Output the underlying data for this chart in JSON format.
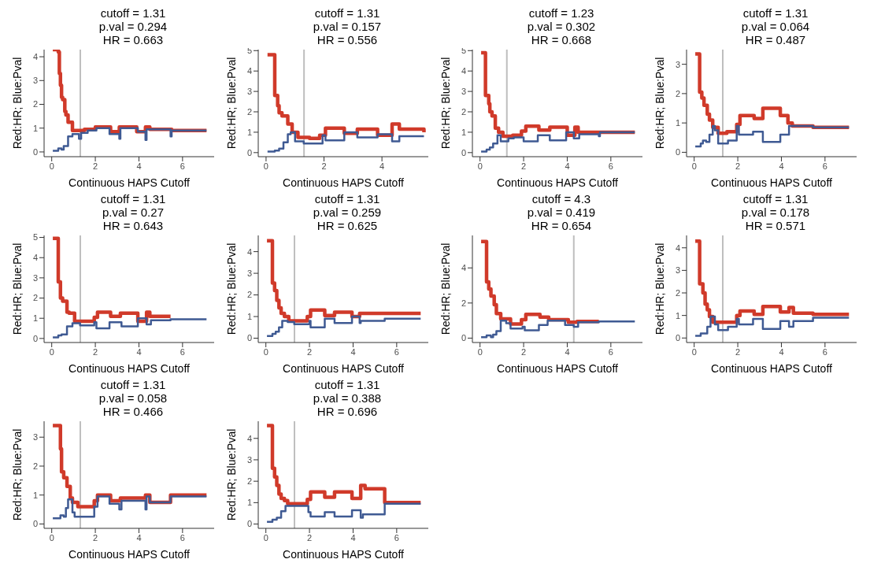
{
  "chart_data": [
    {
      "type": "step",
      "title": "cutoff = 1.31\np.val = 0.294\nHR = 0.663",
      "xlabel": "Continuous HAPS Cutoff",
      "ylabel": "Red:HR; Blue:Pval",
      "xlim": [
        -0.35,
        7.45
      ],
      "xticks": [
        0,
        2,
        4,
        6
      ],
      "ylim": [
        -0.2,
        4.3
      ],
      "yticks": [
        0,
        1,
        2,
        3,
        4
      ],
      "ref_lines": [
        {
          "axis": "x",
          "value": 1.31,
          "color": "#bebebe"
        }
      ],
      "series": [
        {
          "color": "#d03a2a",
          "x": [
            0.05,
            0.3,
            0.35,
            0.4,
            0.45,
            0.5,
            0.6,
            0.65,
            0.75,
            0.95,
            1.2,
            1.5,
            2.0,
            2.7,
            3.1,
            3.9,
            4.3,
            4.5,
            5.5,
            7.1
          ],
          "values": [
            4.3,
            4.2,
            3.3,
            2.8,
            2.3,
            2.2,
            1.7,
            1.55,
            1.25,
            0.9,
            0.9,
            0.95,
            1.05,
            0.85,
            1.05,
            0.85,
            1.05,
            0.95,
            0.9,
            0.9
          ]
        },
        {
          "color": "#3f5a93",
          "x": [
            0.05,
            0.3,
            0.45,
            0.55,
            0.75,
            0.95,
            1.25,
            1.35,
            1.65,
            2.05,
            2.65,
            3.1,
            3.15,
            3.95,
            4.3,
            4.35,
            5.45,
            5.5,
            7.1
          ],
          "values": [
            0.05,
            0.15,
            0.1,
            0.25,
            0.65,
            0.75,
            0.55,
            0.8,
            0.9,
            1.0,
            0.75,
            0.55,
            1.0,
            0.85,
            0.5,
            0.95,
            0.65,
            0.9,
            0.9
          ]
        }
      ]
    },
    {
      "type": "step",
      "title": "cutoff = 1.31\np.val = 0.157\nHR = 0.556",
      "xlabel": "Continuous HAPS Cutoff",
      "ylabel": "Red:HR; Blue:Pval",
      "xlim": [
        -0.27,
        5.6
      ],
      "xticks": [
        0,
        2,
        4
      ],
      "ylim": [
        -0.2,
        5.05
      ],
      "yticks": [
        0,
        1,
        2,
        3,
        4,
        5
      ],
      "ref_lines": [
        {
          "axis": "x",
          "value": 1.31,
          "color": "#bebebe"
        }
      ],
      "series": [
        {
          "color": "#d03a2a",
          "x": [
            0.05,
            0.3,
            0.4,
            0.45,
            0.55,
            0.75,
            0.9,
            1.1,
            1.5,
            1.85,
            2.05,
            2.7,
            3.15,
            3.85,
            4.35,
            4.6,
            5.45
          ],
          "values": [
            4.8,
            2.8,
            2.3,
            1.95,
            1.8,
            1.4,
            1.0,
            0.75,
            0.7,
            0.85,
            1.2,
            0.95,
            1.15,
            0.85,
            1.4,
            1.15,
            1.0
          ]
        },
        {
          "color": "#3f5a93",
          "x": [
            0.05,
            0.3,
            0.45,
            0.6,
            0.75,
            0.85,
            1.0,
            1.3,
            1.95,
            2.05,
            2.7,
            3.15,
            3.85,
            4.35,
            4.6,
            5.45
          ],
          "values": [
            0.05,
            0.1,
            0.2,
            0.5,
            0.9,
            1.0,
            0.55,
            0.45,
            0.85,
            0.6,
            1.0,
            0.75,
            0.9,
            0.55,
            0.8,
            0.8
          ]
        }
      ]
    },
    {
      "type": "step",
      "title": "cutoff = 1.23\np.val = 0.302\nHR = 0.668",
      "xlabel": "Continuous HAPS Cutoff",
      "ylabel": "Red:HR; Blue:Pval",
      "xlim": [
        -0.35,
        7.45
      ],
      "xticks": [
        0,
        2,
        4,
        6
      ],
      "ylim": [
        -0.2,
        5.05
      ],
      "yticks": [
        0,
        1,
        2,
        3,
        4,
        5
      ],
      "ref_lines": [
        {
          "axis": "x",
          "value": 1.23,
          "color": "#bebebe"
        }
      ],
      "series": [
        {
          "color": "#d03a2a",
          "x": [
            0.05,
            0.25,
            0.4,
            0.45,
            0.55,
            0.7,
            0.85,
            1.05,
            1.5,
            1.9,
            2.1,
            2.7,
            3.2,
            4.0,
            4.35,
            4.5,
            5.45,
            7.1
          ],
          "values": [
            4.9,
            2.8,
            2.4,
            2.0,
            1.8,
            1.2,
            1.0,
            0.8,
            0.85,
            1.05,
            1.3,
            1.1,
            1.25,
            0.85,
            1.25,
            1.0,
            1.0,
            1.0
          ]
        },
        {
          "color": "#3f5a93",
          "x": [
            0.05,
            0.3,
            0.45,
            0.6,
            0.8,
            0.95,
            1.3,
            1.55,
            2.0,
            2.65,
            3.2,
            3.95,
            4.3,
            4.55,
            5.45,
            5.5,
            7.1
          ],
          "values": [
            0.05,
            0.15,
            0.25,
            0.45,
            0.85,
            0.55,
            0.7,
            0.75,
            0.55,
            0.85,
            0.6,
            1.0,
            0.7,
            0.9,
            0.8,
            1.0,
            1.0
          ]
        }
      ]
    },
    {
      "type": "step",
      "title": "cutoff = 1.31\np.val = 0.064\nHR = 0.487",
      "xlabel": "Continuous HAPS Cutoff",
      "ylabel": "Red:HR; Blue:Pval",
      "xlim": [
        -0.35,
        7.45
      ],
      "xticks": [
        0,
        2,
        4,
        6
      ],
      "ylim": [
        -0.15,
        3.5
      ],
      "yticks": [
        0,
        1,
        2,
        3
      ],
      "ref_lines": [
        {
          "axis": "x",
          "value": 1.31,
          "color": "#bebebe"
        }
      ],
      "series": [
        {
          "color": "#d03a2a",
          "x": [
            0.05,
            0.25,
            0.35,
            0.45,
            0.6,
            0.7,
            0.85,
            1.1,
            1.5,
            1.95,
            2.1,
            2.75,
            3.15,
            3.95,
            4.3,
            4.5,
            5.45,
            7.1
          ],
          "values": [
            3.35,
            2.05,
            1.85,
            1.6,
            1.3,
            1.1,
            0.85,
            0.65,
            0.7,
            0.95,
            1.25,
            1.15,
            1.5,
            1.25,
            1.0,
            0.9,
            0.85,
            0.85
          ]
        },
        {
          "color": "#3f5a93",
          "x": [
            0.05,
            0.3,
            0.4,
            0.55,
            0.7,
            0.85,
            0.95,
            1.1,
            1.55,
            1.95,
            2.05,
            2.7,
            3.15,
            3.95,
            4.35,
            5.45,
            5.5,
            7.1
          ],
          "values": [
            0.2,
            0.3,
            0.4,
            0.35,
            0.6,
            0.9,
            0.75,
            0.3,
            0.4,
            0.9,
            0.6,
            0.7,
            0.35,
            0.6,
            0.9,
            0.85,
            0.85,
            0.85
          ]
        }
      ]
    },
    {
      "type": "step",
      "title": "cutoff = 1.31\np.val = 0.27\nHR = 0.643",
      "xlabel": "Continuous HAPS Cutoff",
      "ylabel": "Red:HR; Blue:Pval",
      "xlim": [
        -0.35,
        7.45
      ],
      "xticks": [
        0,
        2,
        4,
        6
      ],
      "ylim": [
        -0.2,
        5.1
      ],
      "yticks": [
        0,
        1,
        2,
        3,
        4,
        5
      ],
      "ref_lines": [
        {
          "axis": "x",
          "value": 1.31,
          "color": "#bebebe"
        }
      ],
      "series": [
        {
          "color": "#d03a2a",
          "x": [
            0.05,
            0.3,
            0.4,
            0.5,
            0.7,
            0.8,
            1.05,
            1.95,
            2.1,
            2.7,
            3.15,
            3.95,
            4.35,
            4.5,
            5.45
          ],
          "values": [
            4.95,
            2.8,
            2.0,
            1.85,
            1.3,
            1.25,
            0.85,
            1.05,
            1.3,
            1.1,
            1.25,
            0.85,
            1.3,
            1.1,
            1.1
          ]
        },
        {
          "color": "#3f5a93",
          "x": [
            0.05,
            0.3,
            0.45,
            0.7,
            0.95,
            1.3,
            1.95,
            2.05,
            2.65,
            3.2,
            3.95,
            4.35,
            4.55,
            5.45,
            7.1
          ],
          "values": [
            0.05,
            0.15,
            0.2,
            0.6,
            0.75,
            0.65,
            0.8,
            0.5,
            0.8,
            0.6,
            1.0,
            0.7,
            0.9,
            0.95,
            0.95
          ]
        }
      ]
    },
    {
      "type": "step",
      "title": "cutoff = 1.31\np.val = 0.259\nHR = 0.625",
      "xlabel": "Continuous HAPS Cutoff",
      "ylabel": "Red:HR; Blue:Pval",
      "xlim": [
        -0.35,
        7.45
      ],
      "xticks": [
        0,
        2,
        4,
        6
      ],
      "ylim": [
        -0.2,
        4.75
      ],
      "yticks": [
        0,
        1,
        2,
        3,
        4
      ],
      "ref_lines": [
        {
          "axis": "x",
          "value": 1.31,
          "color": "#bebebe"
        }
      ],
      "series": [
        {
          "color": "#d03a2a",
          "x": [
            0.05,
            0.3,
            0.4,
            0.5,
            0.6,
            0.7,
            0.85,
            1.05,
            1.9,
            2.05,
            2.7,
            3.15,
            3.95,
            4.3,
            5.45,
            7.1
          ],
          "values": [
            4.5,
            2.55,
            2.2,
            1.75,
            1.4,
            1.15,
            1.0,
            0.8,
            1.0,
            1.3,
            1.05,
            1.2,
            1.0,
            1.15,
            1.15,
            1.15
          ]
        },
        {
          "color": "#3f5a93",
          "x": [
            0.05,
            0.3,
            0.45,
            0.6,
            0.75,
            1.0,
            1.3,
            2.0,
            2.05,
            2.7,
            3.15,
            3.95,
            4.3,
            4.35,
            5.45,
            7.1
          ],
          "values": [
            0.1,
            0.2,
            0.3,
            0.5,
            0.8,
            0.75,
            0.65,
            0.8,
            0.5,
            0.9,
            0.7,
            1.0,
            0.7,
            0.8,
            0.9,
            0.9
          ]
        }
      ]
    },
    {
      "type": "step",
      "title": "cutoff = 4.3\np.val = 0.419\nHR = 0.654",
      "xlabel": "Continuous HAPS Cutoff",
      "ylabel": "Red:HR; Blue:Pval",
      "xlim": [
        -0.35,
        7.45
      ],
      "xticks": [
        0,
        2,
        4,
        6
      ],
      "ylim": [
        -0.25,
        5.85
      ],
      "yticks": [
        0,
        2,
        4
      ],
      "ref_lines": [
        {
          "axis": "x",
          "value": 4.3,
          "color": "#bebebe"
        }
      ],
      "series": [
        {
          "color": "#d03a2a",
          "x": [
            0.05,
            0.3,
            0.4,
            0.5,
            0.65,
            0.75,
            0.95,
            1.4,
            1.9,
            2.1,
            2.75,
            3.15,
            4.05,
            4.45,
            5.45
          ],
          "values": [
            5.5,
            3.2,
            2.8,
            2.4,
            1.9,
            1.4,
            1.1,
            0.8,
            1.05,
            1.35,
            1.2,
            1.05,
            0.9,
            0.95,
            0.95
          ]
        },
        {
          "color": "#3f5a93",
          "x": [
            0.05,
            0.3,
            0.5,
            0.6,
            0.75,
            0.95,
            1.2,
            1.4,
            1.95,
            2.05,
            2.7,
            3.1,
            3.9,
            4.3,
            4.5,
            5.45,
            7.1
          ],
          "values": [
            0.05,
            0.15,
            0.05,
            0.2,
            0.4,
            1.0,
            0.85,
            0.55,
            0.65,
            0.45,
            0.75,
            1.0,
            0.75,
            0.65,
            0.9,
            0.95,
            0.95
          ]
        }
      ]
    },
    {
      "type": "step",
      "title": "cutoff = 1.31\np.val = 0.178\nHR = 0.571",
      "xlabel": "Continuous HAPS Cutoff",
      "ylabel": "Red:HR; Blue:Pval",
      "xlim": [
        -0.35,
        7.45
      ],
      "xticks": [
        0,
        2,
        4,
        6
      ],
      "ylim": [
        -0.2,
        4.55
      ],
      "yticks": [
        0,
        1,
        2,
        3,
        4
      ],
      "ref_lines": [
        {
          "axis": "x",
          "value": 1.31,
          "color": "#bebebe"
        }
      ],
      "series": [
        {
          "color": "#d03a2a",
          "x": [
            0.05,
            0.25,
            0.4,
            0.5,
            0.6,
            0.7,
            0.85,
            1.1,
            1.95,
            2.1,
            2.75,
            3.15,
            3.95,
            4.35,
            4.55,
            5.45,
            7.1
          ],
          "values": [
            4.3,
            2.4,
            2.0,
            1.5,
            1.25,
            0.95,
            0.7,
            0.7,
            1.0,
            1.2,
            1.05,
            1.4,
            1.15,
            1.35,
            1.1,
            1.05,
            1.05
          ]
        },
        {
          "color": "#3f5a93",
          "x": [
            0.05,
            0.3,
            0.6,
            0.75,
            0.95,
            1.1,
            1.55,
            1.95,
            2.05,
            2.7,
            3.15,
            3.95,
            4.35,
            4.55,
            5.45,
            7.1
          ],
          "values": [
            0.1,
            0.2,
            0.5,
            0.95,
            0.6,
            0.35,
            0.5,
            0.85,
            0.6,
            0.85,
            0.4,
            0.75,
            0.5,
            0.75,
            0.9,
            0.9
          ]
        }
      ]
    },
    {
      "type": "step",
      "title": "cutoff = 1.31\np.val = 0.058\nHR = 0.466",
      "xlabel": "Continuous HAPS Cutoff",
      "ylabel": "Red:HR; Blue:Pval",
      "xlim": [
        -0.35,
        7.45
      ],
      "xticks": [
        0,
        2,
        4,
        6
      ],
      "ylim": [
        -0.15,
        3.55
      ],
      "yticks": [
        0,
        1,
        2,
        3
      ],
      "ref_lines": [
        {
          "axis": "x",
          "value": 1.31,
          "color": "#bebebe"
        }
      ],
      "series": [
        {
          "color": "#d03a2a",
          "x": [
            0.05,
            0.4,
            0.45,
            0.55,
            0.7,
            0.85,
            0.95,
            1.2,
            1.95,
            2.1,
            2.7,
            3.15,
            4.3,
            4.5,
            5.45,
            7.1
          ],
          "values": [
            3.4,
            2.6,
            1.8,
            1.6,
            1.3,
            0.9,
            0.75,
            0.6,
            0.8,
            1.0,
            0.8,
            0.9,
            1.0,
            0.75,
            1.0,
            1.0
          ]
        },
        {
          "color": "#3f5a93",
          "x": [
            0.05,
            0.4,
            0.55,
            0.65,
            0.75,
            0.95,
            1.05,
            1.3,
            1.95,
            2.1,
            2.65,
            3.1,
            3.2,
            4.3,
            4.35,
            4.5,
            5.45,
            7.1
          ],
          "values": [
            0.2,
            0.3,
            0.25,
            0.55,
            0.85,
            0.4,
            0.25,
            0.25,
            0.6,
            0.95,
            0.7,
            0.5,
            0.8,
            0.5,
            0.95,
            0.75,
            0.95,
            0.95
          ]
        }
      ]
    },
    {
      "type": "step",
      "title": "cutoff = 1.31\np.val = 0.388\nHR = 0.696",
      "xlabel": "Continuous HAPS Cutoff",
      "ylabel": "Red:HR; Blue:Pval",
      "xlim": [
        -0.35,
        7.45
      ],
      "xticks": [
        0,
        2,
        4,
        6
      ],
      "ylim": [
        -0.2,
        4.8
      ],
      "yticks": [
        0,
        1,
        2,
        3,
        4
      ],
      "ref_lines": [
        {
          "axis": "x",
          "value": 1.31,
          "color": "#bebebe"
        }
      ],
      "series": [
        {
          "color": "#d03a2a",
          "x": [
            0.05,
            0.3,
            0.4,
            0.5,
            0.6,
            0.7,
            0.85,
            1.0,
            1.9,
            2.05,
            2.7,
            3.15,
            3.95,
            4.35,
            4.55,
            5.45,
            7.1
          ],
          "values": [
            4.6,
            2.6,
            2.2,
            1.8,
            1.4,
            1.2,
            1.1,
            0.95,
            1.15,
            1.5,
            1.25,
            1.5,
            1.2,
            1.8,
            1.65,
            1.0,
            1.0
          ]
        },
        {
          "color": "#3f5a93",
          "x": [
            0.05,
            0.3,
            0.5,
            0.7,
            0.9,
            1.05,
            1.95,
            2.05,
            2.7,
            3.15,
            3.95,
            4.35,
            4.45,
            5.45,
            7.1
          ],
          "values": [
            0.1,
            0.2,
            0.3,
            0.6,
            0.85,
            0.85,
            0.55,
            0.35,
            0.55,
            0.35,
            0.65,
            0.3,
            0.45,
            0.95,
            0.95
          ]
        }
      ]
    }
  ]
}
